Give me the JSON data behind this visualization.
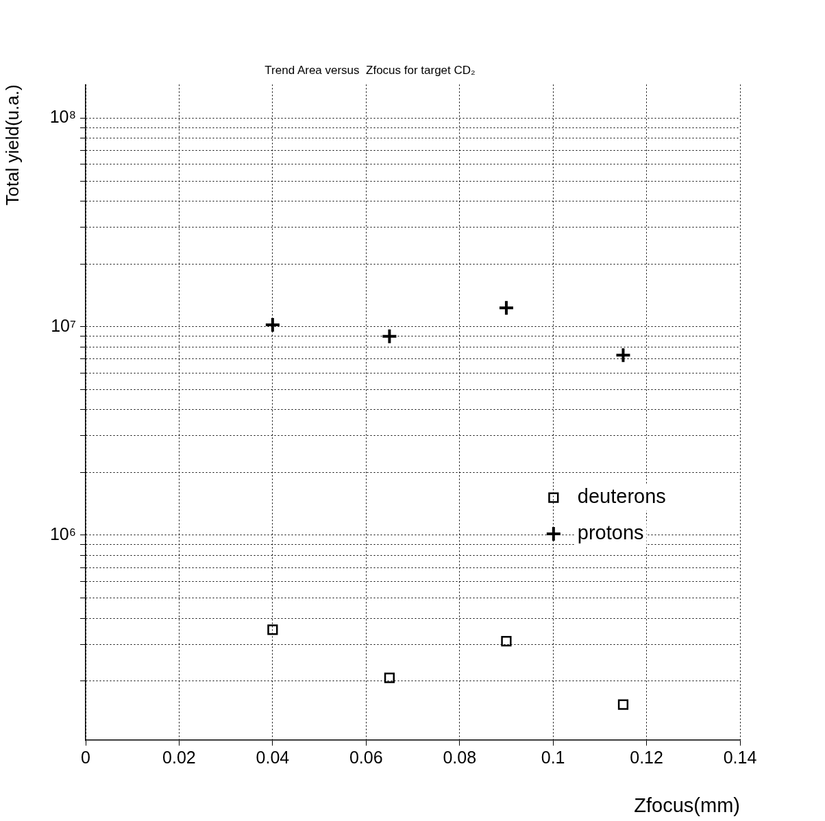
{
  "chart_data": {
    "type": "scatter",
    "title": "Trend Area versus  Zfocus for target CD₂",
    "xlabel": "Zfocus(mm)",
    "ylabel": "Total yield(u.a.)",
    "x": [
      0.04,
      0.065,
      0.09,
      0.115
    ],
    "series": [
      {
        "name": "deuterons",
        "color": "#000000",
        "marker": "square",
        "values": [
          352000,
          207000,
          310000,
          154000
        ]
      },
      {
        "name": "protons",
        "color": "#000000",
        "marker": "cross",
        "values": [
          10200000,
          9000000,
          12300000,
          7300000
        ]
      }
    ],
    "log": "y",
    "xlim": [
      0,
      0.14
    ],
    "xticks": [
      0,
      0.02,
      0.04,
      0.06,
      0.08,
      0.1,
      0.12,
      0.14
    ],
    "ylim": [
      104000,
      145000000
    ],
    "yticks": [
      {
        "value": 200000,
        "label": null
      },
      {
        "value": 300000,
        "label": null
      },
      {
        "value": 400000,
        "label": null
      },
      {
        "value": 500000,
        "label": null
      },
      {
        "value": 600000,
        "label": null
      },
      {
        "value": 700000,
        "label": null
      },
      {
        "value": 800000,
        "label": null
      },
      {
        "value": 900000,
        "label": null
      },
      {
        "value": 1000000,
        "label": "10⁶"
      },
      {
        "value": 2000000,
        "label": null
      },
      {
        "value": 3000000,
        "label": null
      },
      {
        "value": 4000000,
        "label": null
      },
      {
        "value": 5000000,
        "label": null
      },
      {
        "value": 6000000,
        "label": null
      },
      {
        "value": 7000000,
        "label": null
      },
      {
        "value": 8000000,
        "label": null
      },
      {
        "value": 9000000,
        "label": null
      },
      {
        "value": 10000000,
        "label": "10⁷"
      },
      {
        "value": 20000000,
        "label": null
      },
      {
        "value": 30000000,
        "label": null
      },
      {
        "value": 40000000,
        "label": null
      },
      {
        "value": 50000000,
        "label": null
      },
      {
        "value": 60000000,
        "label": null
      },
      {
        "value": 70000000,
        "label": null
      },
      {
        "value": 80000000,
        "label": null
      },
      {
        "value": 90000000,
        "label": null
      },
      {
        "value": 100000000,
        "label": "10⁸"
      }
    ],
    "grid": true,
    "legend": "right"
  }
}
